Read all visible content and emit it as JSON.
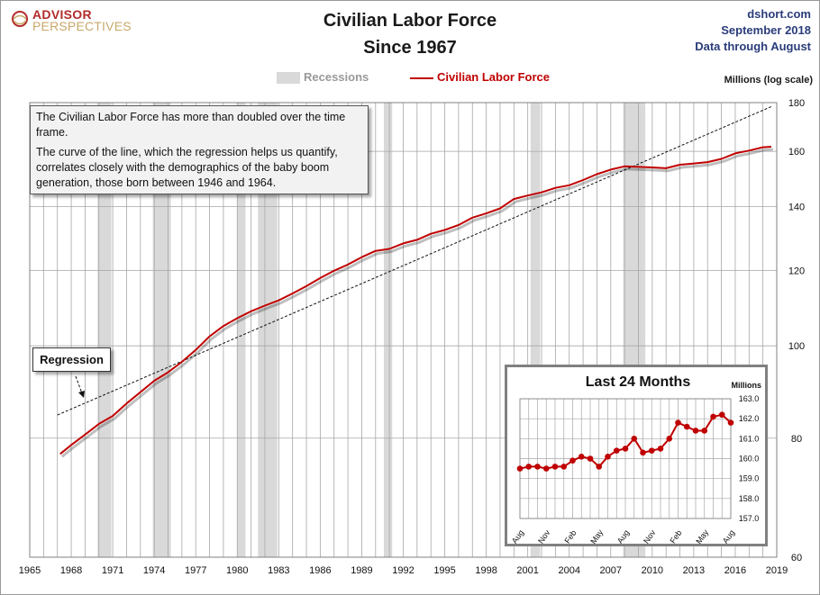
{
  "header": {
    "logo_line1": "ADVISOR",
    "logo_line2": "PERSPECTIVES",
    "title_line1": "Civilian Labor Force",
    "title_line2": "Since 1967",
    "source": "dshort.com",
    "date": "September 2018",
    "data_note": "Data through August"
  },
  "legend": {
    "recessions_label": "Recessions",
    "series_label": "Civilian Labor Force"
  },
  "axis": {
    "unit_label": "Millions  (log scale)"
  },
  "annotations": {
    "note_p1": "The Civilian Labor Force has more than doubled over the time frame.",
    "note_p2": "The curve of the line, which the regression helps us quantify, correlates closely with the demographics of the baby boom generation, those born between 1946 and 1964.",
    "regression_label": "Regression"
  },
  "colors": {
    "series": "#c00000",
    "recession": "#d9d9d9",
    "grid": "#a6a6a6",
    "title_text": "#1a1a1a",
    "meta_text": "#2a3c7a"
  },
  "chart_data": [
    {
      "type": "line",
      "title": "Civilian Labor Force Since 1967",
      "ylabel": "Millions (log scale)",
      "y_scale": "log",
      "xlim": [
        1965,
        2019
      ],
      "ylim": [
        60,
        180
      ],
      "x_ticks": [
        "1965",
        "1968",
        "1971",
        "1974",
        "1977",
        "1980",
        "1983",
        "1986",
        "1989",
        "1992",
        "1995",
        "1998",
        "2001",
        "2004",
        "2007",
        "2010",
        "2013",
        "2016",
        "2019"
      ],
      "y_ticks": [
        60,
        80,
        100,
        120,
        140,
        160,
        180
      ],
      "recessions": [
        [
          1969.9,
          1970.9
        ],
        [
          1973.9,
          1975.2
        ],
        [
          1980.0,
          1980.6
        ],
        [
          1981.5,
          1982.9
        ],
        [
          1990.6,
          1991.2
        ],
        [
          2001.2,
          2001.9
        ],
        [
          2007.9,
          2009.5
        ]
      ],
      "series": [
        {
          "name": "Civilian Labor Force",
          "x": [
            1967.2,
            1968.0,
            1969.0,
            1970.0,
            1971.0,
            1972.0,
            1973.0,
            1974.0,
            1975.0,
            1976.0,
            1977.0,
            1978.0,
            1979.0,
            1980.0,
            1981.0,
            1982.0,
            1983.0,
            1984.0,
            1985.0,
            1986.0,
            1987.0,
            1988.0,
            1989.0,
            1990.0,
            1991.0,
            1992.0,
            1993.0,
            1994.0,
            1995.0,
            1996.0,
            1997.0,
            1998.0,
            1999.0,
            2000.0,
            2001.0,
            2002.0,
            2003.0,
            2004.0,
            2005.0,
            2006.0,
            2007.0,
            2008.0,
            2009.0,
            2010.0,
            2011.0,
            2012.0,
            2013.0,
            2014.0,
            2015.0,
            2016.0,
            2017.0,
            2018.0,
            2018.6
          ],
          "values": [
            77.0,
            78.7,
            80.7,
            82.8,
            84.4,
            87.0,
            89.4,
            91.9,
            93.8,
            96.2,
            99.0,
            102.3,
            104.9,
            106.9,
            108.7,
            110.2,
            111.6,
            113.5,
            115.5,
            117.8,
            119.9,
            121.7,
            123.9,
            125.8,
            126.4,
            128.1,
            129.2,
            131.1,
            132.3,
            133.9,
            136.3,
            137.7,
            139.4,
            142.6,
            143.8,
            144.9,
            146.5,
            147.4,
            149.3,
            151.4,
            153.1,
            154.3,
            154.1,
            153.9,
            153.6,
            154.9,
            155.4,
            155.9,
            157.1,
            159.2,
            160.3,
            161.6,
            161.8
          ]
        },
        {
          "name": "Regression",
          "x": [
            1967.0,
            2018.7
          ],
          "values": [
            84.6,
            178.5
          ]
        }
      ]
    },
    {
      "type": "line",
      "title": "Last 24 Months",
      "ylabel": "Millions",
      "ylim": [
        157.0,
        163.0
      ],
      "y_ticks": [
        157.0,
        158.0,
        159.0,
        160.0,
        161.0,
        162.0,
        163.0
      ],
      "x_tick_labels": [
        "Aug",
        "Nov",
        "Feb",
        "May",
        "Aug",
        "Nov",
        "Feb",
        "May",
        "Aug"
      ],
      "series": [
        {
          "name": "Civilian Labor Force",
          "categories": [
            "Aug 2016",
            "Sep 2016",
            "Oct 2016",
            "Nov 2016",
            "Dec 2016",
            "Jan 2017",
            "Feb 2017",
            "Mar 2017",
            "Apr 2017",
            "May 2017",
            "Jun 2017",
            "Jul 2017",
            "Aug 2017",
            "Sep 2017",
            "Oct 2017",
            "Nov 2017",
            "Dec 2017",
            "Jan 2018",
            "Feb 2018",
            "Mar 2018",
            "Apr 2018",
            "May 2018",
            "Jun 2018",
            "Jul 2018",
            "Aug 2018"
          ],
          "values": [
            159.5,
            159.6,
            159.6,
            159.5,
            159.6,
            159.6,
            159.9,
            160.1,
            160.0,
            159.6,
            160.1,
            160.4,
            160.5,
            161.0,
            160.3,
            160.4,
            160.5,
            161.0,
            161.8,
            161.6,
            161.4,
            161.4,
            162.1,
            162.2,
            161.8
          ]
        }
      ]
    }
  ]
}
